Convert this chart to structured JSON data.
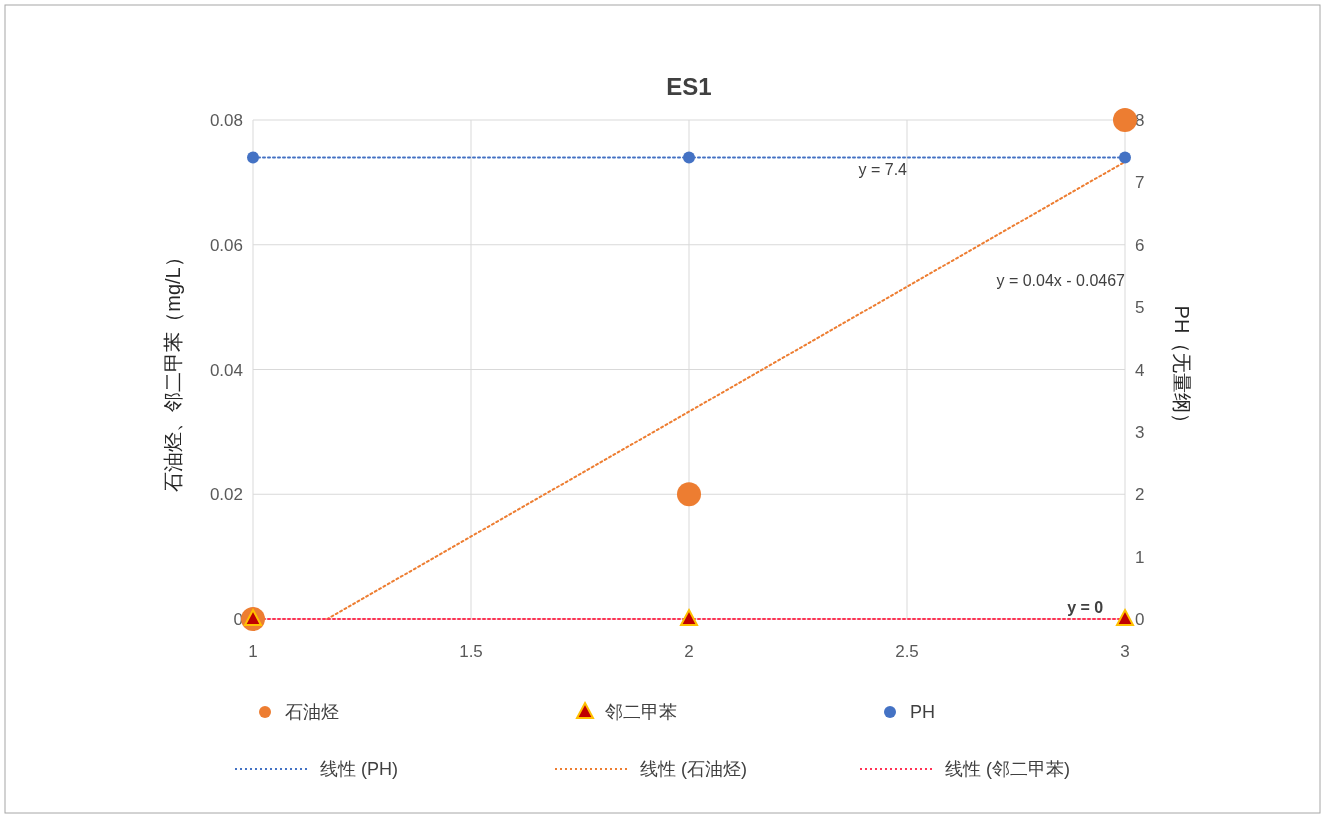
{
  "chart_data": {
    "type": "scatter",
    "title": "ES1",
    "ylabel": "石油烃、邻二甲苯（mg/L）",
    "y2label": "PH（无量纲）",
    "xlim": [
      1,
      3
    ],
    "xticks": [
      1,
      1.5,
      2,
      2.5,
      3
    ],
    "ylim": [
      0,
      0.08
    ],
    "yticks": [
      0,
      0.02,
      0.04,
      0.06,
      0.08
    ],
    "y2lim": [
      0,
      8
    ],
    "y2ticks": [
      0,
      1,
      2,
      3,
      4,
      5,
      6,
      7,
      8
    ],
    "grid": true,
    "legend": "bottom",
    "series": [
      {
        "name": "石油烃",
        "type": "scatter",
        "marker": "circle",
        "color": "#ed7d31",
        "x": [
          1,
          2,
          3
        ],
        "values": [
          0,
          0.02,
          0.08
        ]
      },
      {
        "name": "邻二甲苯",
        "type": "scatter",
        "marker": "triangle",
        "color": "#c00000",
        "x": [
          1,
          2,
          3
        ],
        "values": [
          0,
          0,
          0
        ]
      },
      {
        "name": "PH",
        "type": "scatter",
        "marker": "circle",
        "color": "#4472c4",
        "axis": "y2",
        "x": [
          1,
          2,
          3
        ],
        "values": [
          7.4,
          7.4,
          7.4
        ]
      },
      {
        "name": "线性 (PH)",
        "type": "line",
        "line_style": "dotted",
        "marker": "none",
        "color": "#4472c4",
        "axis": "y2",
        "x": [
          1,
          3
        ],
        "values": [
          7.4,
          7.4
        ]
      },
      {
        "name": "线性 (石油烃)",
        "type": "line",
        "line_style": "dotted",
        "marker": "none",
        "color": "#ed7d31",
        "x": [
          1.17,
          3
        ],
        "values": [
          0,
          0.0733
        ]
      },
      {
        "name": "线性 (邻二甲苯)",
        "type": "line",
        "line_style": "dotted",
        "marker": "none",
        "color": "#ff3355",
        "x": [
          1,
          3
        ],
        "values": [
          0,
          0
        ]
      }
    ],
    "annotations": [
      {
        "text": "y = 7.4",
        "x": 2.5,
        "y": 0.074
      },
      "y = 0.04x - 0.0467",
      {
        "text": "y = 0",
        "x": 2.95,
        "y": 0
      }
    ]
  }
}
